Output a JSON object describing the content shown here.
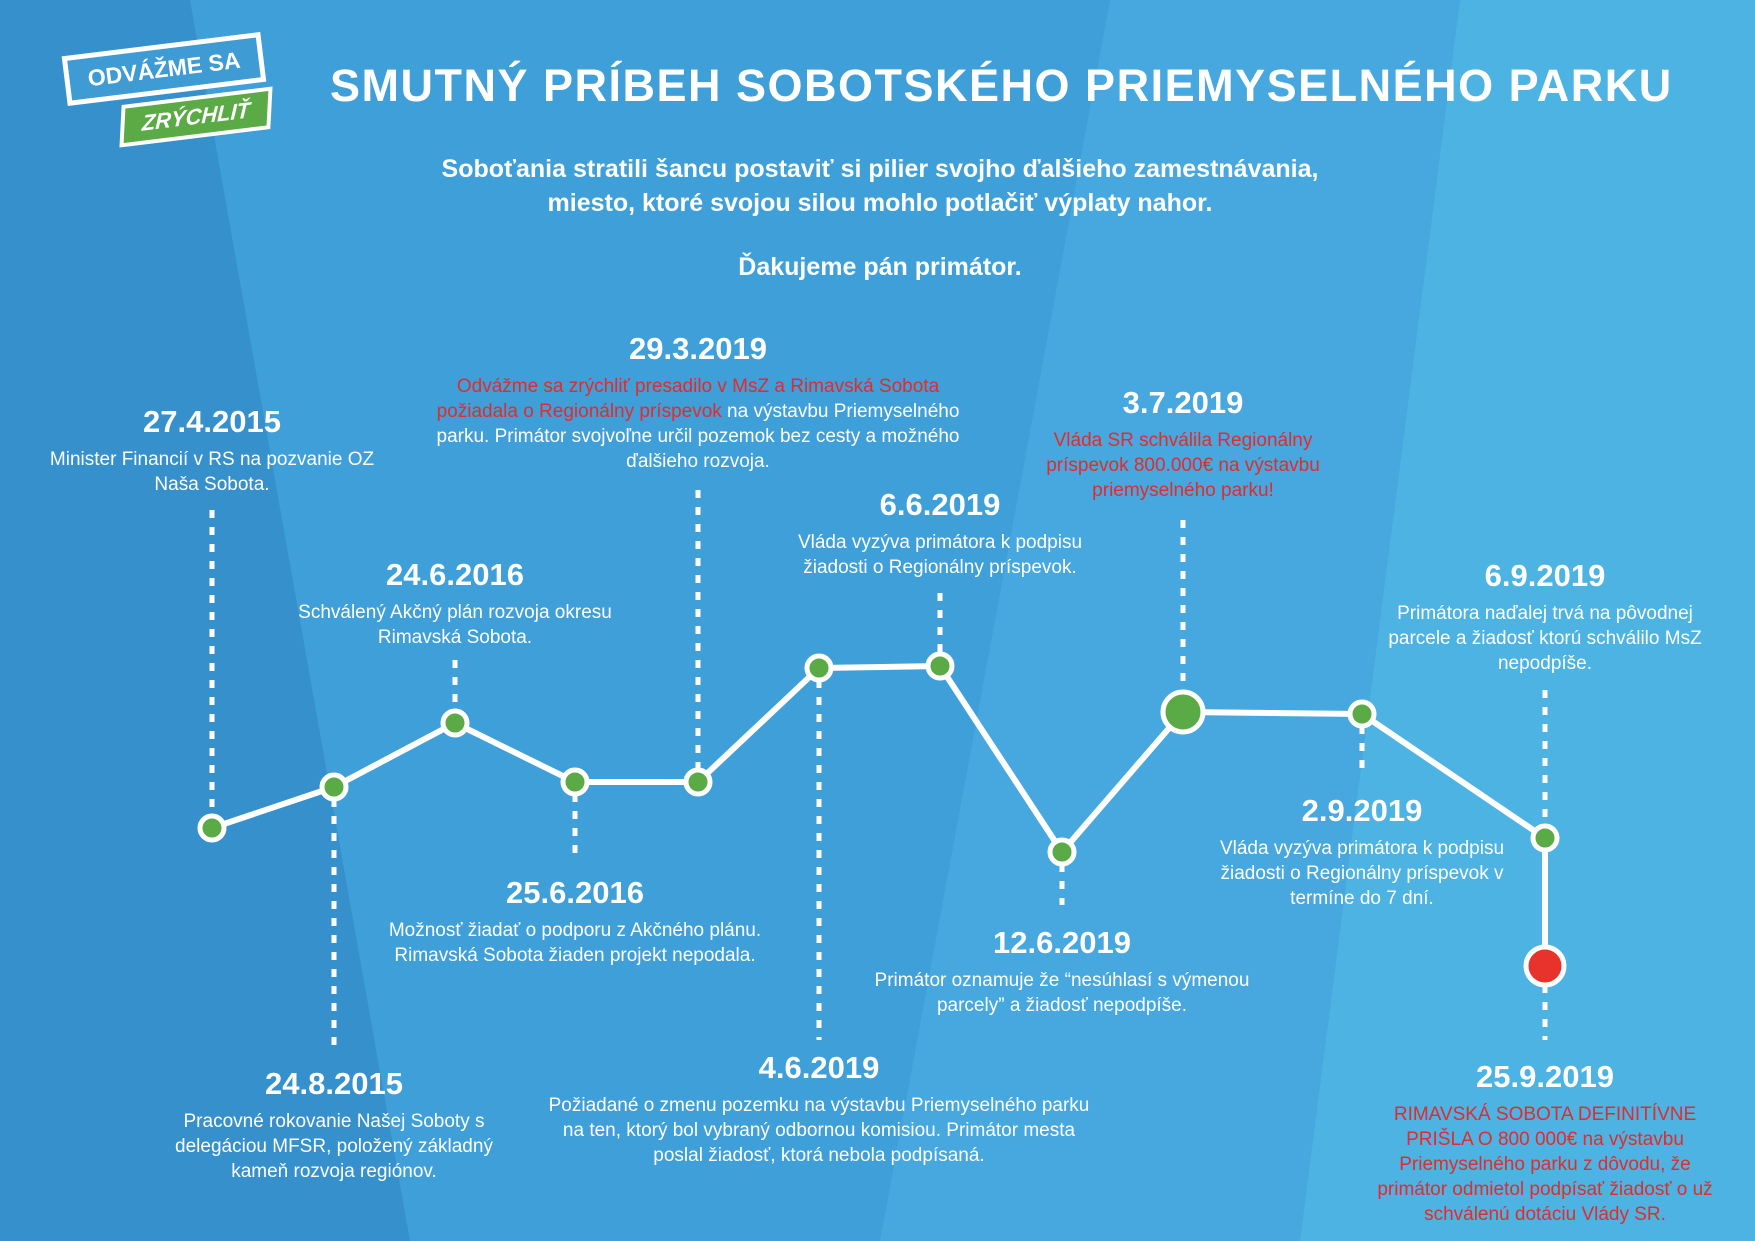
{
  "logo": {
    "line1": "ODVÁŽME SA",
    "line2": "ZRÝCHLIŤ"
  },
  "header": {
    "title": "SMUTNÝ PRÍBEH SOBOTSKÉHO PRIEMYSELNÉHO PARKU",
    "intro_line1": "Soboťania stratili šancu postaviť si pilier svojho ďalšieho zamestnávania,",
    "intro_line2": "miesto, ktoré svojou silou mohlo potlačiť výplaty nahor.",
    "thanks": "Ďakujeme pán primátor."
  },
  "colors": {
    "background": "#3f9fd8",
    "text": "#ffffff",
    "highlight_red": "#e32b2b",
    "node_green": "#5aab45",
    "node_final_red": "#e8322c",
    "line": "#ffffff"
  },
  "timeline": {
    "events": [
      {
        "date": "27.4.2015",
        "description": "Minister Financií v RS na pozvanie OZ Naša Sobota."
      },
      {
        "date": "24.8.2015",
        "description": "Pracovné rokovanie Našej Soboty s delegáciou MFSR, položený základný kameň rozvoja regiónov."
      },
      {
        "date": "24.6.2016",
        "description": "Schválený Akčný plán rozvoja okresu Rimavská Sobota."
      },
      {
        "date": "25.6.2016",
        "description": "Možnosť žiadať o podporu z Akčného plánu. Rimavská Sobota žiaden projekt nepodala."
      },
      {
        "date": "29.3.2019",
        "highlight": "Odvážme sa zrýchliť presadilo v MsZ a Rimavská Sobota požiadala o Regionálny príspevok",
        "description": " na výstavbu Priemyselného parku. Primátor svojvoľne určil pozemok bez cesty a možného ďalšieho rozvoja."
      },
      {
        "date": "4.6.2019",
        "description": "Požiadané o zmenu pozemku na výstavbu Priemyselného parku na ten, ktorý bol vybraný odbornou komisiou. Primátor mesta poslal žiadosť, ktorá nebola podpísaná."
      },
      {
        "date": "6.6.2019",
        "description": "Vláda vyzýva primátora k podpisu žiadosti o Regionálny príspevok."
      },
      {
        "date": "12.6.2019",
        "description": "Primátor oznamuje že “nesúhlasí s výmenou parcely” a žiadosť nepodpíše."
      },
      {
        "date": "3.7.2019",
        "highlight": "Vláda SR schválila Regionálny príspevok 800.000€ na výstavbu priemyselného parku!",
        "description": ""
      },
      {
        "date": "2.9.2019",
        "description": "Vláda vyzýva primátora k podpisu žiadosti o Regionálny príspevok v termíne do 7 dní."
      },
      {
        "date": "6.9.2019",
        "description": "Primátora naďalej trvá na pôvodnej parcele a žiadosť ktorú schválilo MsZ nepodpíše."
      },
      {
        "date": "25.9.2019",
        "highlight": "RIMAVSKÁ SOBOTA DEFINITÍVNE PRIŠLA O 800 000€",
        "description": " na výstavbu Priemyselného parku  z dôvodu, že primátor odmietol podpísať žiadosť o už schválenú dotáciu Vlády SR."
      }
    ]
  }
}
